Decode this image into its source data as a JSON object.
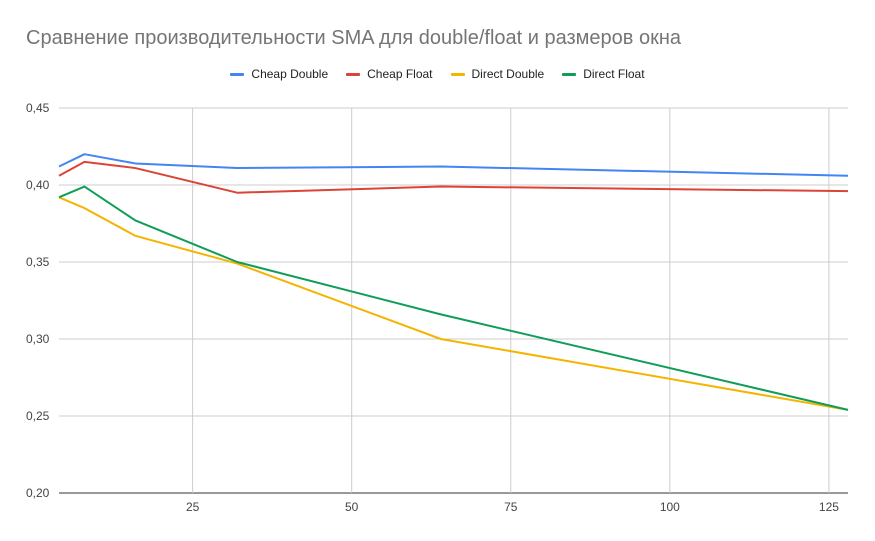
{
  "chart_data": {
    "type": "line",
    "title": "Сравнение производительности SMA для double/float и размеров окна",
    "xlabel": "",
    "ylabel": "",
    "xlim": [
      4,
      128
    ],
    "ylim": [
      0.2,
      0.45
    ],
    "x_ticks": [
      25,
      50,
      75,
      100,
      125
    ],
    "x_tick_labels": [
      "25",
      "50",
      "75",
      "100",
      "125"
    ],
    "y_ticks": [
      0.2,
      0.25,
      0.3,
      0.35,
      0.4,
      0.45
    ],
    "y_tick_labels": [
      "0,20",
      "0,25",
      "0,30",
      "0,35",
      "0,40",
      "0,45"
    ],
    "grid": true,
    "legend_position": "top",
    "x": [
      4,
      8,
      16,
      32,
      64,
      128
    ],
    "series": [
      {
        "name": "Cheap Double",
        "color": "#4285F4",
        "values": [
          0.412,
          0.42,
          0.414,
          0.411,
          0.412,
          0.406
        ]
      },
      {
        "name": "Cheap Float",
        "color": "#DB4437",
        "values": [
          0.406,
          0.415,
          0.411,
          0.395,
          0.399,
          0.396
        ]
      },
      {
        "name": "Direct Double",
        "color": "#F4B400",
        "values": [
          0.392,
          0.385,
          0.367,
          0.349,
          0.3,
          0.254
        ]
      },
      {
        "name": "Direct Float",
        "color": "#0F9D58",
        "values": [
          0.392,
          0.399,
          0.377,
          0.35,
          0.316,
          0.254
        ]
      }
    ]
  }
}
